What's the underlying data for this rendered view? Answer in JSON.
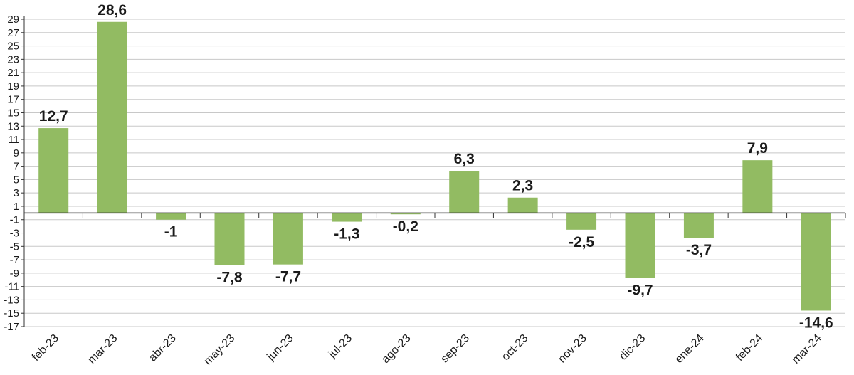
{
  "chart_data": {
    "type": "bar",
    "title": "",
    "xlabel": "",
    "ylabel": "",
    "categories": [
      "feb-23",
      "mar-23",
      "abr-23",
      "may-23",
      "jun-23",
      "jul-23",
      "ago-23",
      "sep-23",
      "oct-23",
      "nov-23",
      "dic-23",
      "ene-24",
      "feb-24",
      "mar-24"
    ],
    "values": [
      12.7,
      28.6,
      -1,
      -7.8,
      -7.7,
      -1.3,
      -0.2,
      6.3,
      2.3,
      -2.5,
      -9.7,
      -3.7,
      7.9,
      -14.6
    ],
    "value_labels": [
      "12,7",
      "28,6",
      "-1",
      "-7,8",
      "-7,7",
      "-1,3",
      "-0,2",
      "6,3",
      "2,3",
      "-2,5",
      "-9,7",
      "-3,7",
      "7,9",
      "-14,6"
    ],
    "ylim": [
      -17,
      29
    ],
    "yticks": [
      29,
      27,
      25,
      23,
      21,
      19,
      17,
      15,
      13,
      11,
      9,
      7,
      5,
      3,
      1,
      -1,
      -3,
      -5,
      -7,
      -9,
      -11,
      -13,
      -15,
      -17
    ],
    "grid": true,
    "bar_color": "#92bb62",
    "grid_color": "#c8c8c8",
    "axis_color": "#333333"
  }
}
